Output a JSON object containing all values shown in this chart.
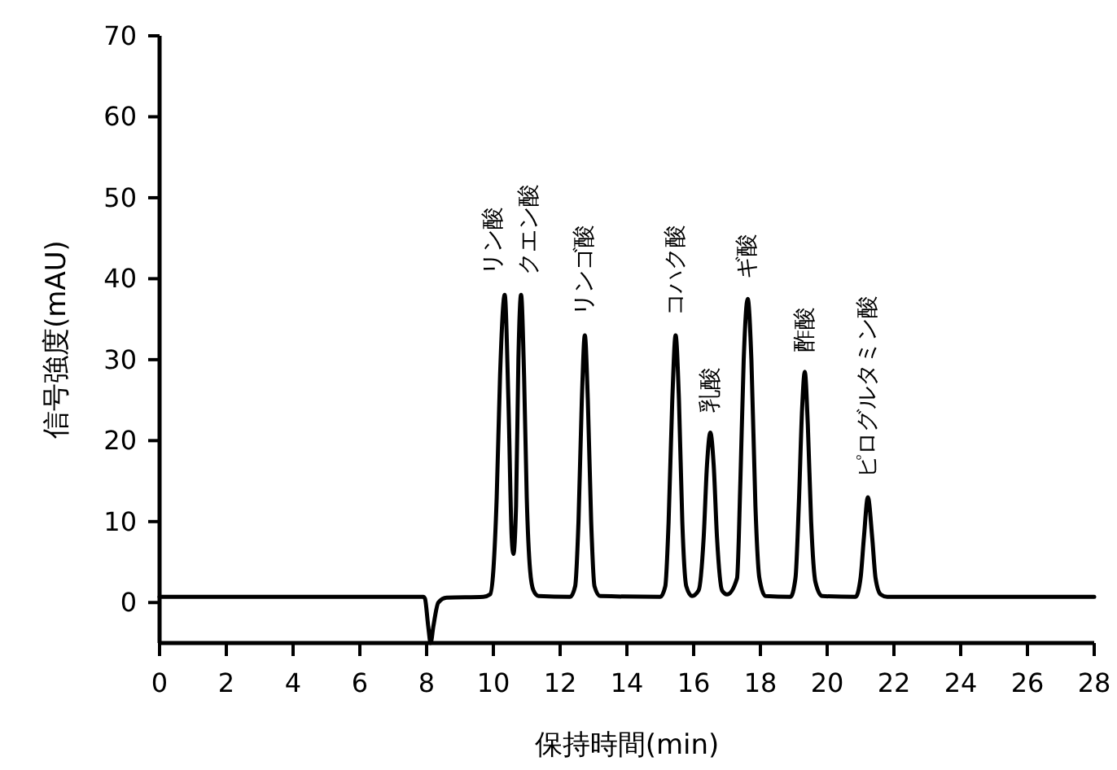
{
  "chart_data": {
    "type": "line",
    "xlabel": "保持時間(min)",
    "ylabel": "信号強度(mAU)",
    "xlim": [
      0,
      28
    ],
    "xticks": [
      0,
      2,
      4,
      6,
      8,
      10,
      12,
      14,
      16,
      18,
      20,
      22,
      24,
      26,
      28
    ],
    "ylim": [
      -5,
      70
    ],
    "yticks": [
      0,
      10,
      20,
      30,
      40,
      50,
      60,
      70
    ],
    "grid": false,
    "marker": "none",
    "line_style": "solid",
    "series": [
      {
        "color": "#000000",
        "x": [
          0,
          2,
          4,
          6,
          7.9,
          7.95,
          8.05,
          8.12,
          8.2,
          8.35,
          8.6,
          9.7,
          9.9,
          10.0,
          10.1,
          10.2,
          10.34,
          10.45,
          10.55,
          10.6,
          10.68,
          10.75,
          10.83,
          10.92,
          11.0,
          11.1,
          11.2,
          11.35,
          12.3,
          12.45,
          12.55,
          12.65,
          12.74,
          12.83,
          12.93,
          13.03,
          13.2,
          15.0,
          15.15,
          15.25,
          15.36,
          15.46,
          15.56,
          15.66,
          15.78,
          15.95,
          16.15,
          16.3,
          16.4,
          16.5,
          16.6,
          16.7,
          16.85,
          17.0,
          17.3,
          17.4,
          17.5,
          17.62,
          17.73,
          17.85,
          17.97,
          18.15,
          18.9,
          19.05,
          19.15,
          19.25,
          19.33,
          19.42,
          19.52,
          19.65,
          19.85,
          20.85,
          21.0,
          21.1,
          21.22,
          21.35,
          21.45,
          21.6,
          21.8,
          24,
          26,
          28
        ],
        "values": [
          0.7,
          0.7,
          0.7,
          0.7,
          0.7,
          0.5,
          -3,
          -5,
          -3,
          0,
          0.6,
          0.7,
          1,
          4,
          13,
          28,
          38,
          25,
          8,
          6,
          12,
          30,
          38,
          28,
          13,
          4,
          1.5,
          0.8,
          0.7,
          2,
          10,
          25,
          33,
          25,
          10,
          2,
          0.8,
          0.7,
          2,
          10,
          25,
          33,
          25,
          10,
          2,
          0.8,
          1.5,
          8,
          17,
          21,
          17,
          8,
          1.5,
          1,
          3,
          15,
          30,
          37.5,
          30,
          12,
          3,
          0.8,
          0.7,
          3,
          12,
          24,
          28.5,
          22,
          10,
          2.5,
          0.8,
          0.7,
          3,
          8,
          13,
          8,
          3,
          1,
          0.7,
          0.7,
          0.7,
          0.7
        ]
      }
    ],
    "annotations": [
      {
        "text": "リン酸",
        "x": 10.34,
        "y": 38
      },
      {
        "text": "クエン酸",
        "x": 10.83,
        "y": 38
      },
      {
        "text": "リンゴ酸",
        "x": 12.74,
        "y": 33
      },
      {
        "text": "コハク酸",
        "x": 15.46,
        "y": 33
      },
      {
        "text": "乳酸",
        "x": 16.5,
        "y": 21
      },
      {
        "text": "ギ酸",
        "x": 17.62,
        "y": 37.5
      },
      {
        "text": "酢酸",
        "x": 19.33,
        "y": 28.5
      },
      {
        "text": "ピログルタミン酸",
        "x": 21.22,
        "y": 13
      }
    ]
  }
}
